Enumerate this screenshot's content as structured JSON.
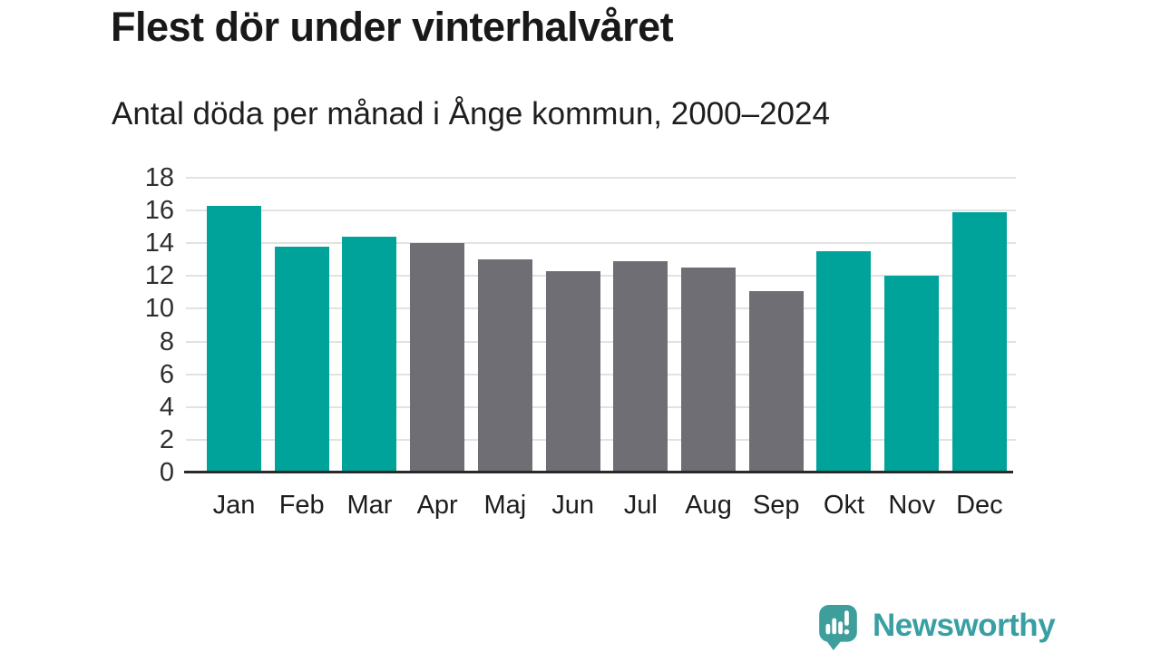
{
  "header": {
    "title": "Flest dör under vinterhalvåret",
    "subtitle": "Antal döda per månad i Ånge kommun, 2000–2024"
  },
  "chart_data": {
    "type": "bar",
    "categories": [
      "Jan",
      "Feb",
      "Mar",
      "Apr",
      "Maj",
      "Jun",
      "Jul",
      "Aug",
      "Sep",
      "Okt",
      "Nov",
      "Dec"
    ],
    "values": [
      16.3,
      13.8,
      14.4,
      14.0,
      13.0,
      12.3,
      12.9,
      12.5,
      11.1,
      13.5,
      12.0,
      15.9
    ],
    "bar_colors": [
      "#00a39a",
      "#00a39a",
      "#00a39a",
      "#6e6e74",
      "#6e6e74",
      "#6e6e74",
      "#6e6e74",
      "#6e6e74",
      "#6e6e74",
      "#00a39a",
      "#00a39a",
      "#00a39a"
    ],
    "color_meaning": {
      "teal_winter_months": "#00a39a",
      "gray_summer_months": "#6e6e74"
    },
    "title": "Flest dör under vinterhalvåret",
    "subtitle": "Antal döda per månad i Ånge kommun, 2000–2024",
    "xlabel": "",
    "ylabel": "",
    "ylim": [
      0,
      18
    ],
    "yticks": [
      0,
      2,
      4,
      6,
      8,
      10,
      12,
      14,
      16,
      18
    ],
    "grid": "horizontal-only",
    "gridline_color": "#e2e2e2",
    "axis_line_color": "#2a2a2a",
    "legend": "none"
  },
  "branding": {
    "logo_text": "Newsworthy",
    "logo_icon": "bar-chart-speech-bubble-icon",
    "logo_bubble_color": "#3d9e9b",
    "logo_text_color": "#399fa3"
  }
}
